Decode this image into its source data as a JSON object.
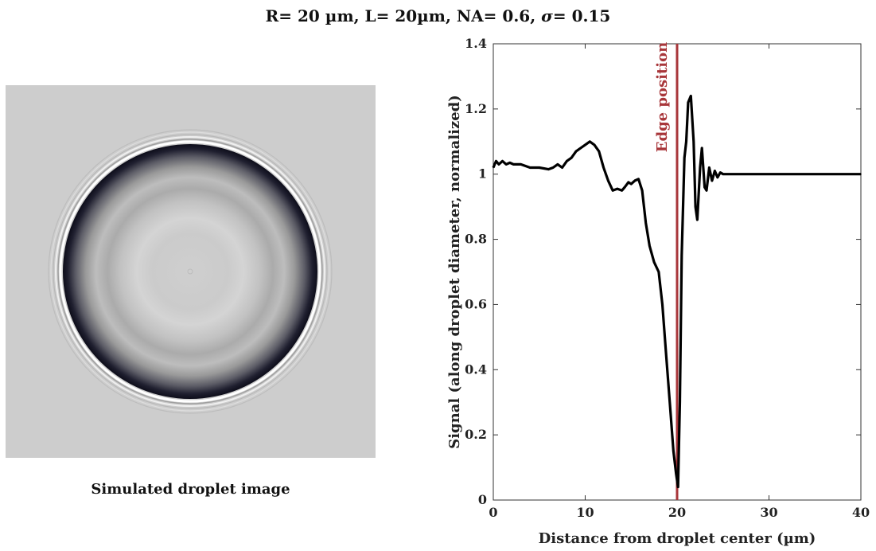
{
  "title": {
    "prefix": "R= 20 µm, L= 20µm, NA= 0.6, ",
    "sigma_symbol": "σ",
    "suffix": "= 0.15"
  },
  "image_caption": "Simulated droplet image",
  "chart_data": {
    "type": "line",
    "xlabel": "Distance from droplet center (µm)",
    "ylabel": "Signal (along droplet diameter, normalized)",
    "xlim": [
      0,
      40
    ],
    "ylim": [
      0,
      1.4
    ],
    "x_ticks": [
      0,
      10,
      20,
      30,
      40
    ],
    "y_ticks": [
      0,
      0.2,
      0.4,
      0.6,
      0.8,
      1,
      1.2,
      1.4
    ],
    "grid": false,
    "series": [
      {
        "color": "#000000",
        "x": [
          0,
          0.3,
          0.6,
          1.0,
          1.4,
          1.8,
          2.2,
          3,
          4,
          5,
          6,
          6.5,
          7,
          7.5,
          8,
          8.5,
          9,
          9.5,
          10,
          10.5,
          11,
          11.5,
          12,
          12.5,
          13,
          13.5,
          14,
          14.3,
          14.7,
          15,
          15.4,
          15.8,
          16.2,
          16.6,
          17,
          17.5,
          18,
          18.4,
          18.8,
          19.2,
          19.6,
          19.9,
          20.1,
          20.3,
          20.5,
          20.8,
          21.0,
          21.2,
          21.5,
          21.8,
          22.0,
          22.2,
          22.5,
          22.7,
          23.0,
          23.2,
          23.5,
          23.8,
          24.1,
          24.4,
          24.7,
          25,
          27,
          30,
          35,
          40
        ],
        "y": [
          1.02,
          1.04,
          1.03,
          1.04,
          1.03,
          1.035,
          1.03,
          1.03,
          1.02,
          1.02,
          1.015,
          1.02,
          1.03,
          1.02,
          1.04,
          1.05,
          1.07,
          1.08,
          1.09,
          1.1,
          1.09,
          1.07,
          1.02,
          0.98,
          0.95,
          0.955,
          0.95,
          0.96,
          0.975,
          0.97,
          0.98,
          0.985,
          0.95,
          0.85,
          0.78,
          0.73,
          0.7,
          0.6,
          0.45,
          0.3,
          0.15,
          0.08,
          0.04,
          0.3,
          0.75,
          1.05,
          1.1,
          1.22,
          1.24,
          1.1,
          0.9,
          0.86,
          1.02,
          1.08,
          0.96,
          0.95,
          1.02,
          0.98,
          1.01,
          0.99,
          1.005,
          1.0,
          1.0,
          1.0,
          1.0,
          1.0
        ]
      }
    ],
    "annotations": [
      {
        "type": "vline",
        "x": 20,
        "label": "Edge position",
        "color": "#a8363a"
      }
    ]
  }
}
